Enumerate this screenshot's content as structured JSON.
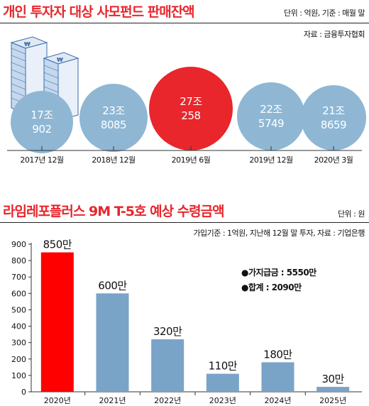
{
  "top": {
    "title": "개인 투자자 대상 사모펀드 판매잔액",
    "unit_note": "단위 : 억원, 기준 : 매월 말",
    "source": "자료 : 금융투자협회",
    "icon": "stacked-money-icon"
  },
  "bottom": {
    "title": "라임레포플러스 9M T-5호 예상 수령금액",
    "unit_note": "단위 : 원",
    "basis_note": "가입기준 : 1억원, 지난해 12월 말 투자, 자료 : 기업은행",
    "annotation_1": "●가지급금 : 5550만",
    "annotation_2": "●합계 : 2090만"
  },
  "colors": {
    "accent": "#e8262c",
    "bubble": "#8fb7d4",
    "bar": "#7aa3c8",
    "bar_highlight": "#ff0000"
  },
  "chart_data": [
    {
      "type": "bubble",
      "title": "개인 투자자 대상 사모펀드 판매잔액",
      "categories": [
        "2017년 12월",
        "2018년 12월",
        "2019년 6월",
        "2019년 12월",
        "2020년 3월"
      ],
      "labels": [
        [
          "17조",
          "902"
        ],
        [
          "23조",
          "8085"
        ],
        [
          "27조",
          "258"
        ],
        [
          "22조",
          "5749"
        ],
        [
          "21조",
          "8659"
        ]
      ],
      "values": [
        170902,
        238085,
        270258,
        225749,
        218659
      ],
      "highlight_index": 2
    },
    {
      "type": "bar",
      "title": "라임레포플러스 9M T-5호 예상 수령금액",
      "categories": [
        "2020년",
        "2021년",
        "2022년",
        "2023년",
        "2024년",
        "2025년"
      ],
      "values": [
        850,
        600,
        320,
        110,
        180,
        30
      ],
      "value_labels": [
        "850만",
        "600만",
        "320만",
        "110만",
        "180만",
        "30만"
      ],
      "ylim": [
        0,
        900
      ],
      "yticks": [
        0,
        100,
        200,
        300,
        400,
        500,
        600,
        700,
        800,
        900
      ],
      "highlight_index": 0,
      "grid": false
    }
  ]
}
